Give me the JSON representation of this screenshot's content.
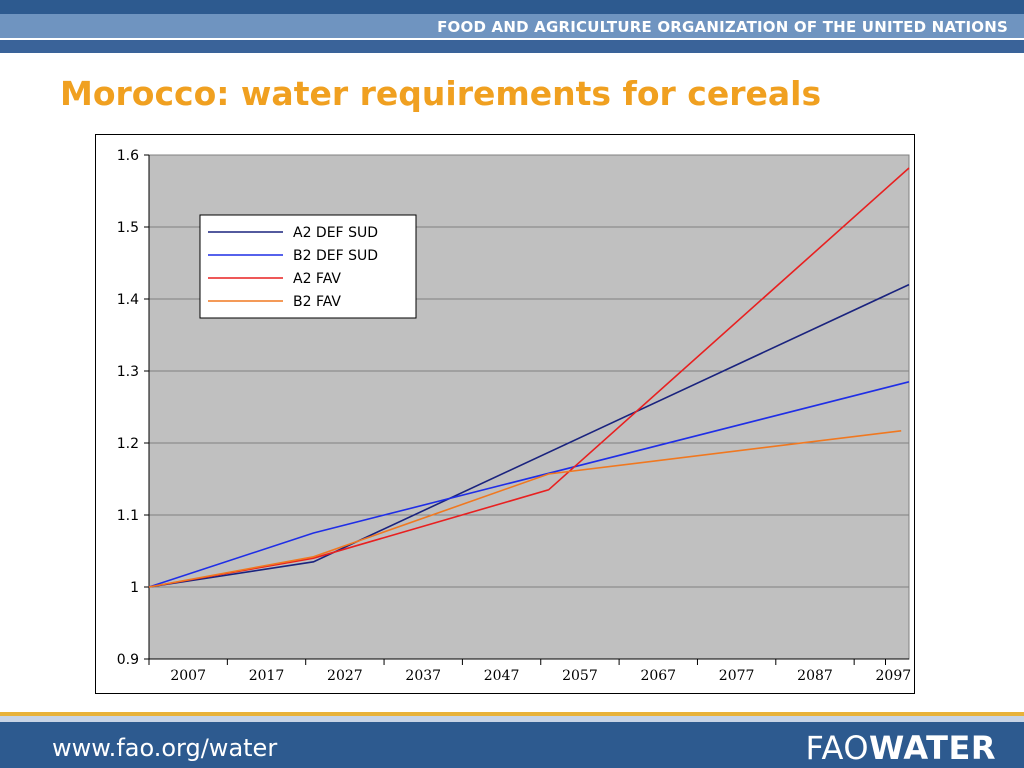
{
  "header": {
    "org_name": "FOOD AND AGRICULTURE ORGANIZATION OF THE UNITED NATIONS"
  },
  "slide": {
    "title": "Morocco: water requirements for cereals"
  },
  "footer": {
    "url": "www.fao.org/water",
    "brand_light": "FAO",
    "brand_bold": "WATER"
  },
  "colors": {
    "header_blue": "#2d5a8f",
    "title_orange": "#f0a020",
    "plot_bg": "#c0c0c0"
  },
  "chart_data": {
    "type": "line",
    "title": "",
    "xlabel": "",
    "ylabel": "",
    "ylim": [
      0.9,
      1.6
    ],
    "xlim": [
      2002,
      2099
    ],
    "y_ticks": [
      0.9,
      1.0,
      1.1,
      1.2,
      1.3,
      1.4,
      1.5,
      1.6
    ],
    "y_tick_labels": [
      "0.9",
      "1",
      "1.1",
      "1.2",
      "1.3",
      "1.4",
      "1.5",
      "1.6"
    ],
    "x_ticks": [
      2007,
      2017,
      2027,
      2037,
      2047,
      2057,
      2067,
      2077,
      2087,
      2097
    ],
    "x_tick_labels": [
      "2007",
      "2017",
      "2027",
      "2037",
      "2047",
      "2057",
      "2067",
      "2077",
      "2087",
      "2097"
    ],
    "grid": {
      "horizontal": true,
      "vertical": false
    },
    "legend_position": "top-left",
    "series": [
      {
        "name": "A2 DEF SUD",
        "color": "#1a237e",
        "points": [
          [
            2002,
            1.0
          ],
          [
            2023,
            1.035
          ],
          [
            2099,
            1.42
          ]
        ]
      },
      {
        "name": "B2 DEF SUD",
        "color": "#1f2ee6",
        "points": [
          [
            2002,
            1.0
          ],
          [
            2023,
            1.075
          ],
          [
            2099,
            1.285
          ]
        ]
      },
      {
        "name": "A2 FAV",
        "color": "#e82020",
        "points": [
          [
            2002,
            1.0
          ],
          [
            2023,
            1.04
          ],
          [
            2053,
            1.135
          ],
          [
            2099,
            1.582
          ]
        ]
      },
      {
        "name": "B2 FAV",
        "color": "#f07820",
        "points": [
          [
            2002,
            1.0
          ],
          [
            2023,
            1.042
          ],
          [
            2053,
            1.157
          ],
          [
            2098,
            1.217
          ]
        ]
      }
    ]
  }
}
